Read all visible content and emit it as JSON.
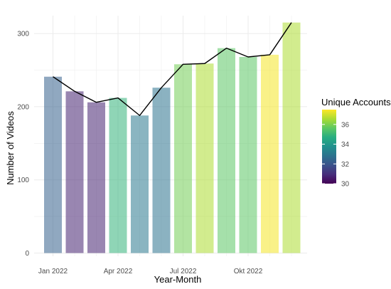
{
  "chart_data": {
    "type": "bar",
    "xlabel": "Year-Month",
    "ylabel": "Number of Videos",
    "ylim": [
      0,
      320
    ],
    "y_ticks": [
      0,
      100,
      200,
      300
    ],
    "x_tick_labels": [
      "Jan 2022",
      "Apr 2022",
      "Jul 2022",
      "Okt 2022"
    ],
    "x_tick_months": [
      1,
      4,
      7,
      10
    ],
    "grid": true,
    "months": [
      1,
      2,
      3,
      4,
      5,
      6,
      7,
      8,
      9,
      10,
      11,
      12
    ],
    "values": [
      241,
      221,
      206,
      212,
      188,
      226,
      258,
      259,
      280,
      268,
      271,
      315
    ],
    "line_values": [
      241,
      221,
      206,
      212,
      188,
      226,
      258,
      259,
      280,
      268,
      271,
      315
    ],
    "color_values": [
      32.3,
      30.7,
      30.7,
      34.9,
      33.0,
      32.8,
      35.9,
      36.6,
      35.6,
      35.6,
      37.4,
      36.6
    ],
    "line_color": "#000000",
    "legend": {
      "title": "Unique Accounts",
      "position": "right",
      "min": 30,
      "max": 37.5,
      "ticks": [
        30,
        32,
        34,
        36
      ]
    }
  }
}
